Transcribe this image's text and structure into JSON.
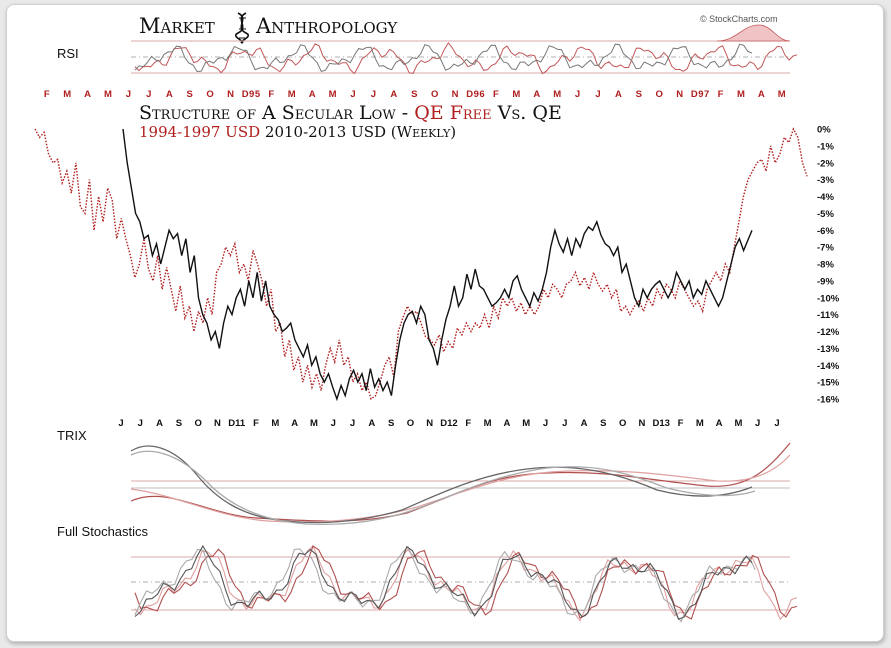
{
  "brand": {
    "left_word": "Market",
    "right_word": "Anthropology",
    "logo_icon": "dna-helix-icon",
    "credit": "© StockCharts.com"
  },
  "panels": {
    "rsi_label": "RSI",
    "trix_label": "TRIX",
    "stoch_label": "Full Stochastics"
  },
  "titles": {
    "title_part1": "Structure of A Secular Low - ",
    "title_highlight": "QE Free",
    "title_part2": " Vs. QE",
    "subtitle_red": "1994-1997 USD",
    "subtitle_black": " 2010-2013 USD (Weekly)"
  },
  "colors": {
    "red_series": "#b01e1e",
    "black_series": "#111111",
    "rsi_red": "#c2585a",
    "rsi_gray": "#777777"
  },
  "axes": {
    "top_months": [
      "F",
      "M",
      "A",
      "M",
      "J",
      "J",
      "A",
      "S",
      "O",
      "N",
      "D95",
      "F",
      "M",
      "A",
      "M",
      "J",
      "J",
      "A",
      "S",
      "O",
      "N",
      "D96",
      "F",
      "M",
      "A",
      "M",
      "J",
      "J",
      "A",
      "S",
      "O",
      "N",
      "D97",
      "F",
      "M",
      "A",
      "M"
    ],
    "bottom_months": [
      "J",
      "J",
      "A",
      "S",
      "O",
      "N",
      "D11",
      "F",
      "M",
      "A",
      "M",
      "J",
      "J",
      "A",
      "S",
      "O",
      "N",
      "D12",
      "F",
      "M",
      "A",
      "M",
      "J",
      "J",
      "A",
      "S",
      "O",
      "N",
      "D13",
      "F",
      "M",
      "A",
      "M",
      "J",
      "J"
    ],
    "y_ticks": [
      "0%",
      "-1%",
      "-2%",
      "-3%",
      "-4%",
      "-5%",
      "-6%",
      "-7%",
      "-8%",
      "-9%",
      "-10%",
      "-11%",
      "-12%",
      "-13%",
      "-14%",
      "-15%",
      "-16%"
    ]
  },
  "chart_data": {
    "type": "line",
    "title": "Structure of A Secular Low - QE Free Vs. QE",
    "subtitle": "1994-1997 USD 2010-2013 USD (Weekly)",
    "ylim": [
      -16,
      0
    ],
    "grid": false,
    "series": [
      {
        "name": "1994-1997 USD",
        "style": "dotted",
        "values": [
          0,
          -0.5,
          -0.2,
          -1.5,
          -2,
          -1.8,
          -3.2,
          -2.5,
          -3.8,
          -2,
          -4.6,
          -5,
          -3,
          -6,
          -4,
          -5.5,
          -3.5,
          -4.2,
          -6.5,
          -5.3,
          -6.5,
          -7.5,
          -8.8,
          -8,
          -6.5,
          -8.3,
          -9,
          -7.5,
          -9.5,
          -8.2,
          -9.5,
          -10.8,
          -9.3,
          -11.2,
          -10.5,
          -12,
          -10.8,
          -11.5,
          -10,
          -11,
          -8.5,
          -8,
          -7,
          -7.5,
          -6.8,
          -8.5,
          -8,
          -9,
          -7.2,
          -8,
          -9,
          -10.5,
          -9.5,
          -12,
          -11.5,
          -13.5,
          -12.5,
          -14.3,
          -13.5,
          -15,
          -14,
          -15.3,
          -14.5,
          -15.5,
          -14,
          -13,
          -13.8,
          -12.5,
          -14,
          -13.5,
          -15,
          -14.5,
          -15.5,
          -15,
          -16,
          -15.8,
          -15,
          -14,
          -13.5,
          -14.7,
          -12,
          -11.2,
          -10.5,
          -11,
          -10.8,
          -11.5,
          -12.3,
          -12.5,
          -12.8,
          -12.2,
          -13.2,
          -12.6,
          -13,
          -11.8,
          -12.2,
          -11.5,
          -12,
          -11.5,
          -11.8,
          -11,
          -11.8,
          -10.5,
          -11.2,
          -10,
          -10.5,
          -10,
          -10.8,
          -10.3,
          -11,
          -10.5,
          -11,
          -10.5,
          -9.5,
          -10,
          -9.2,
          -9.5,
          -10,
          -9.2,
          -9,
          -8.5,
          -9.3,
          -8.8,
          -9.5,
          -8.5,
          -9.2,
          -9.6,
          -9.2,
          -10,
          -9.5,
          -10.8,
          -10.5,
          -11,
          -10.5,
          -10.2,
          -10.8,
          -10,
          -10.5,
          -9.5,
          -10,
          -9.2,
          -9.5,
          -10,
          -9,
          -9.5,
          -10,
          -10.5,
          -10.2,
          -10.8,
          -9.5,
          -9,
          -8.5,
          -9,
          -8,
          -8.5,
          -7,
          -5.5,
          -4,
          -3,
          -2.5,
          -2,
          -1.8,
          -2.5,
          -1,
          -2,
          -1.5,
          -0.5,
          -0.8,
          0,
          -0.5,
          -2,
          -2.8
        ]
      },
      {
        "name": "2010-2013 USD",
        "style": "solid",
        "values": [
          0,
          -2,
          -3.5,
          -5,
          -5.5,
          -6.5,
          -6.3,
          -7.5,
          -6.8,
          -8,
          -7,
          -6,
          -6.5,
          -6.2,
          -7.5,
          -6.5,
          -8.5,
          -7.5,
          -10,
          -11,
          -11.5,
          -12.5,
          -12,
          -13,
          -11.5,
          -10.5,
          -11,
          -10,
          -9.5,
          -10.5,
          -9,
          -10,
          -8.5,
          -10.2,
          -9,
          -10.5,
          -11,
          -11.3,
          -12,
          -11.8,
          -11.5,
          -12.5,
          -13,
          -13.5,
          -12.8,
          -14,
          -13.5,
          -14.5,
          -15,
          -14.5,
          -15.3,
          -16,
          -15.2,
          -15.8,
          -14.8,
          -14.3,
          -15,
          -14.5,
          -15.5,
          -14.2,
          -15.3,
          -14.8,
          -15.5,
          -15,
          -15.8,
          -14,
          -12.5,
          -11.5,
          -11,
          -10.8,
          -11.5,
          -10.5,
          -11,
          -12.5,
          -13,
          -14,
          -12.5,
          -11.3,
          -10.5,
          -9.3,
          -10.5,
          -10,
          -8.6,
          -9.5,
          -8.3,
          -9.3,
          -9.5,
          -10,
          -10.5,
          -10.3,
          -10,
          -9.5,
          -10,
          -9,
          -8.7,
          -9.5,
          -10,
          -10.5,
          -9.7,
          -10.2,
          -9.5,
          -8.5,
          -7,
          -6,
          -6.8,
          -7.3,
          -6.5,
          -7.5,
          -6.5,
          -7,
          -6.2,
          -5.8,
          -6,
          -5.5,
          -6.3,
          -6.8,
          -7,
          -7.5,
          -7,
          -8.5,
          -8,
          -9,
          -10,
          -10.5,
          -9.5,
          -10,
          -9.5,
          -9.2,
          -9,
          -9.5,
          -10,
          -9.5,
          -8.5,
          -9,
          -9.5,
          -9,
          -10,
          -9.5,
          -9.8,
          -9,
          -9.5,
          -10,
          -10.5,
          -10,
          -9,
          -8,
          -7,
          -6.5,
          -7.2,
          -6.6,
          -6
        ]
      }
    ]
  }
}
